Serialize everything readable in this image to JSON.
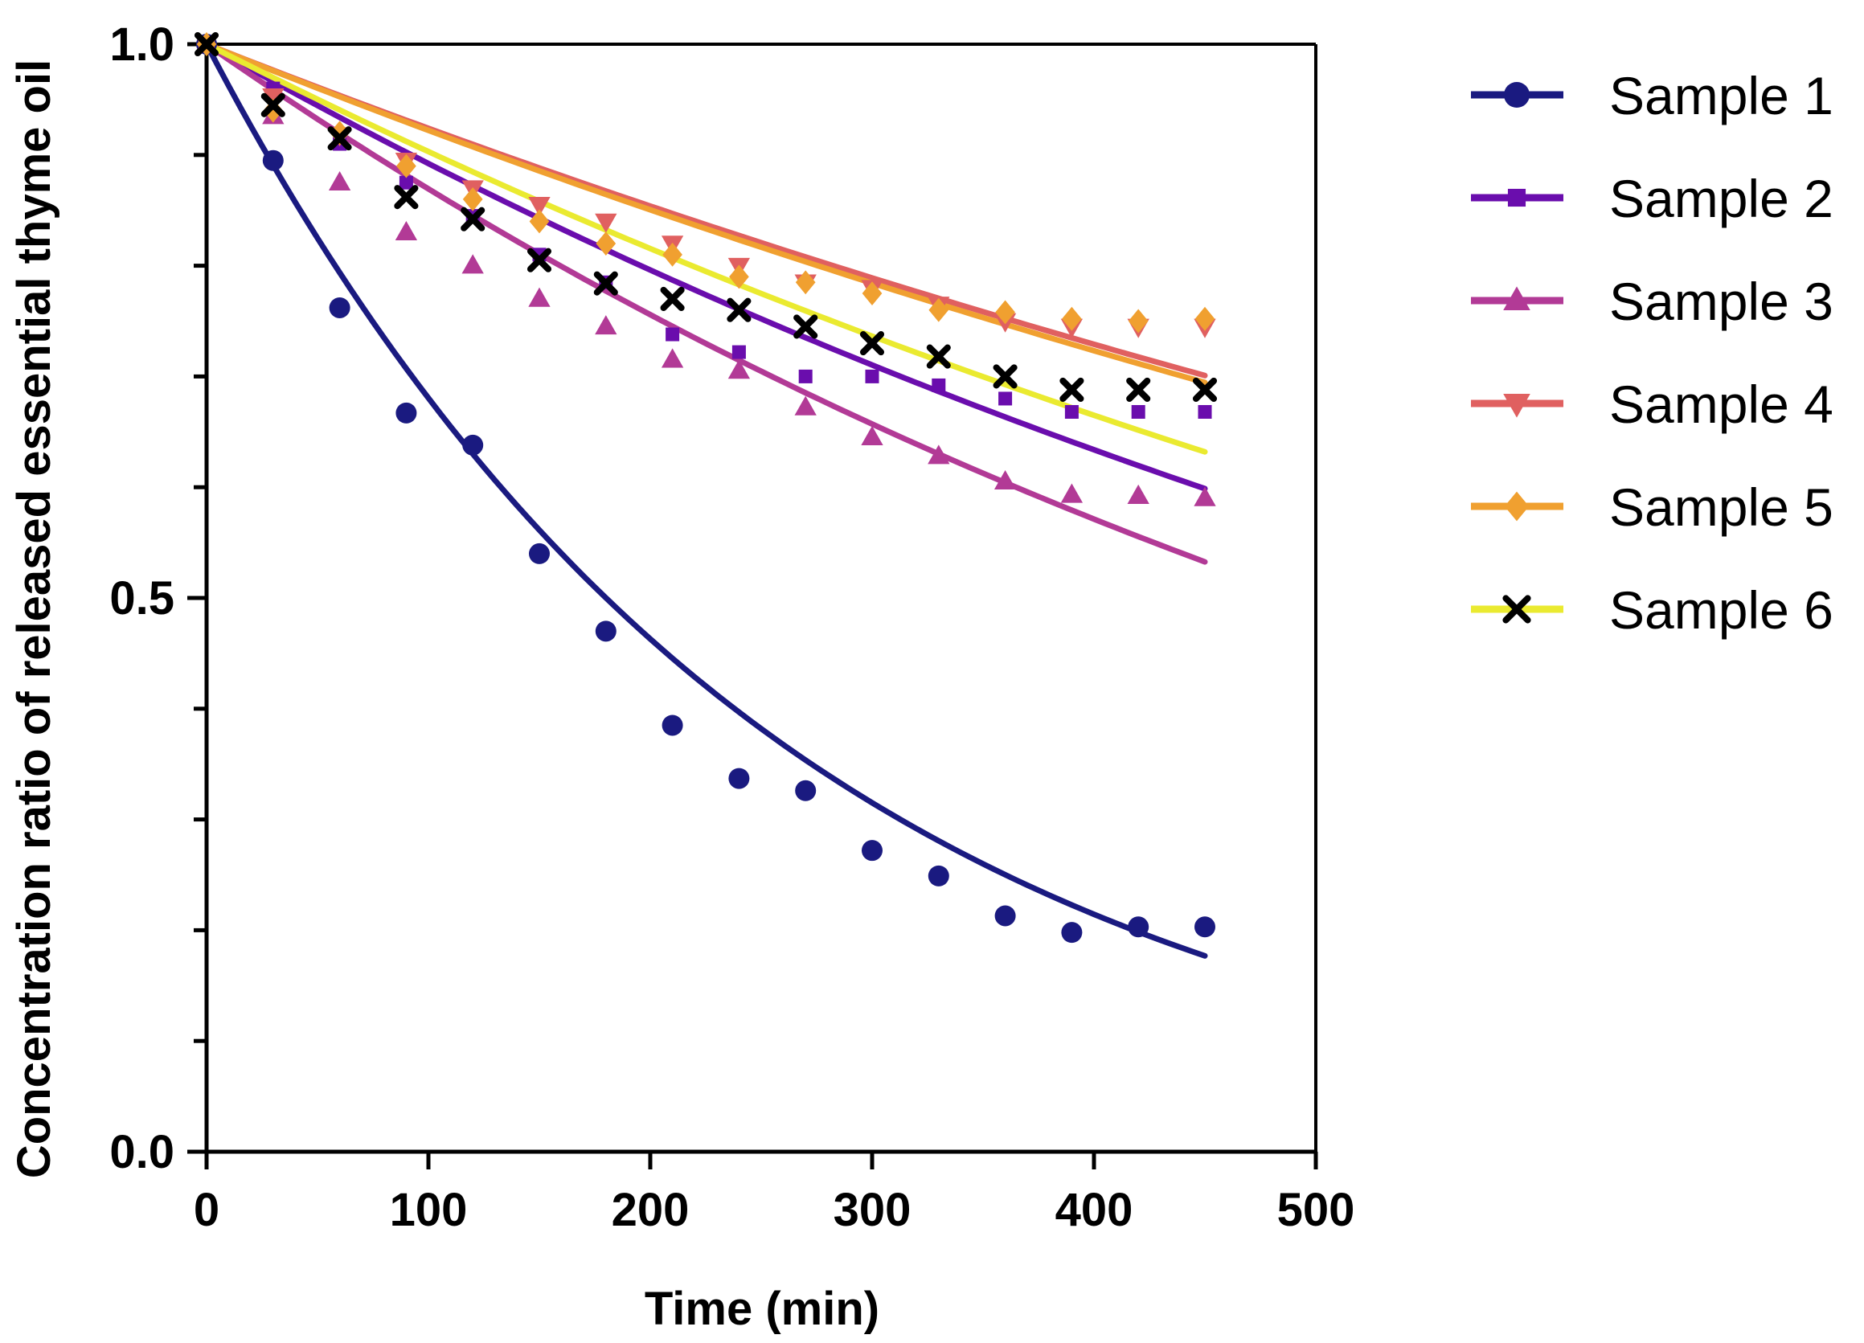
{
  "chart_data": {
    "type": "scatter",
    "title": "",
    "xlabel": "Time (min)",
    "ylabel": "Concentration ratio of released essential thyme oil",
    "xlim": [
      0,
      500
    ],
    "ylim": [
      0,
      1.0
    ],
    "x_ticks": [
      0,
      100,
      200,
      300,
      400,
      500
    ],
    "x_tick_labels": [
      "0",
      "100",
      "200",
      "300",
      "400",
      "500"
    ],
    "y_ticks": [
      0,
      0.5,
      1.0
    ],
    "y_tick_labels": [
      "0.0",
      "0.5",
      "1.0"
    ],
    "y_minor_step": 0.1,
    "legend_position": "right",
    "fit_lines": true,
    "series": [
      {
        "name": "Sample 1",
        "color": "#1a1a80",
        "marker": "circle",
        "fit_k": 0.00385,
        "x": [
          0,
          30,
          60,
          90,
          120,
          150,
          180,
          210,
          240,
          270,
          300,
          330,
          360,
          390,
          420,
          450
        ],
        "y": [
          1.0,
          0.895,
          0.762,
          0.667,
          0.638,
          0.54,
          0.47,
          0.385,
          0.337,
          0.326,
          0.272,
          0.249,
          0.213,
          0.198,
          0.203,
          0.203
        ]
      },
      {
        "name": "Sample 2",
        "color": "#6a0dad",
        "marker": "square",
        "fit_k": 0.00114,
        "x": [
          0,
          30,
          60,
          90,
          120,
          150,
          180,
          210,
          240,
          270,
          300,
          330,
          360,
          390,
          420,
          450
        ],
        "y": [
          1.0,
          0.96,
          0.91,
          0.875,
          0.845,
          0.81,
          0.785,
          0.738,
          0.722,
          0.7,
          0.7,
          0.692,
          0.68,
          0.668,
          0.668,
          0.668
        ]
      },
      {
        "name": "Sample 3",
        "color": "#b23a96",
        "marker": "triangle-up",
        "fit_k": 0.0014,
        "x": [
          0,
          30,
          60,
          90,
          120,
          150,
          180,
          210,
          240,
          270,
          300,
          330,
          360,
          390,
          420,
          450
        ],
        "y": [
          1.0,
          0.935,
          0.875,
          0.83,
          0.8,
          0.77,
          0.745,
          0.715,
          0.705,
          0.672,
          0.645,
          0.628,
          0.605,
          0.593,
          0.592,
          0.59
        ]
      },
      {
        "name": "Sample 4",
        "color": "#e06060",
        "marker": "triangle-down",
        "fit_k": 0.00079,
        "x": [
          0,
          30,
          60,
          90,
          120,
          150,
          180,
          210,
          240,
          270,
          300,
          330,
          360,
          390,
          420,
          450
        ],
        "y": [
          1.0,
          0.953,
          0.918,
          0.895,
          0.87,
          0.855,
          0.84,
          0.82,
          0.8,
          0.785,
          0.78,
          0.765,
          0.75,
          0.745,
          0.745,
          0.745
        ]
      },
      {
        "name": "Sample 5",
        "color": "#f0a030",
        "marker": "diamond",
        "fit_k": 0.00081,
        "x": [
          0,
          30,
          60,
          90,
          120,
          150,
          180,
          210,
          240,
          270,
          300,
          330,
          360,
          390,
          420,
          450
        ],
        "y": [
          1.0,
          0.94,
          0.92,
          0.89,
          0.86,
          0.84,
          0.82,
          0.81,
          0.79,
          0.785,
          0.775,
          0.76,
          0.758,
          0.752,
          0.75,
          0.752
        ]
      },
      {
        "name": "Sample 6",
        "color": "#eaea30",
        "marker": "cross",
        "fit_k": 0.00102,
        "x": [
          0,
          30,
          60,
          90,
          120,
          150,
          180,
          210,
          240,
          270,
          300,
          330,
          360,
          390,
          420,
          450
        ],
        "y": [
          1.0,
          0.945,
          0.915,
          0.862,
          0.842,
          0.805,
          0.784,
          0.77,
          0.76,
          0.745,
          0.73,
          0.718,
          0.7,
          0.688,
          0.688,
          0.688
        ]
      }
    ]
  }
}
